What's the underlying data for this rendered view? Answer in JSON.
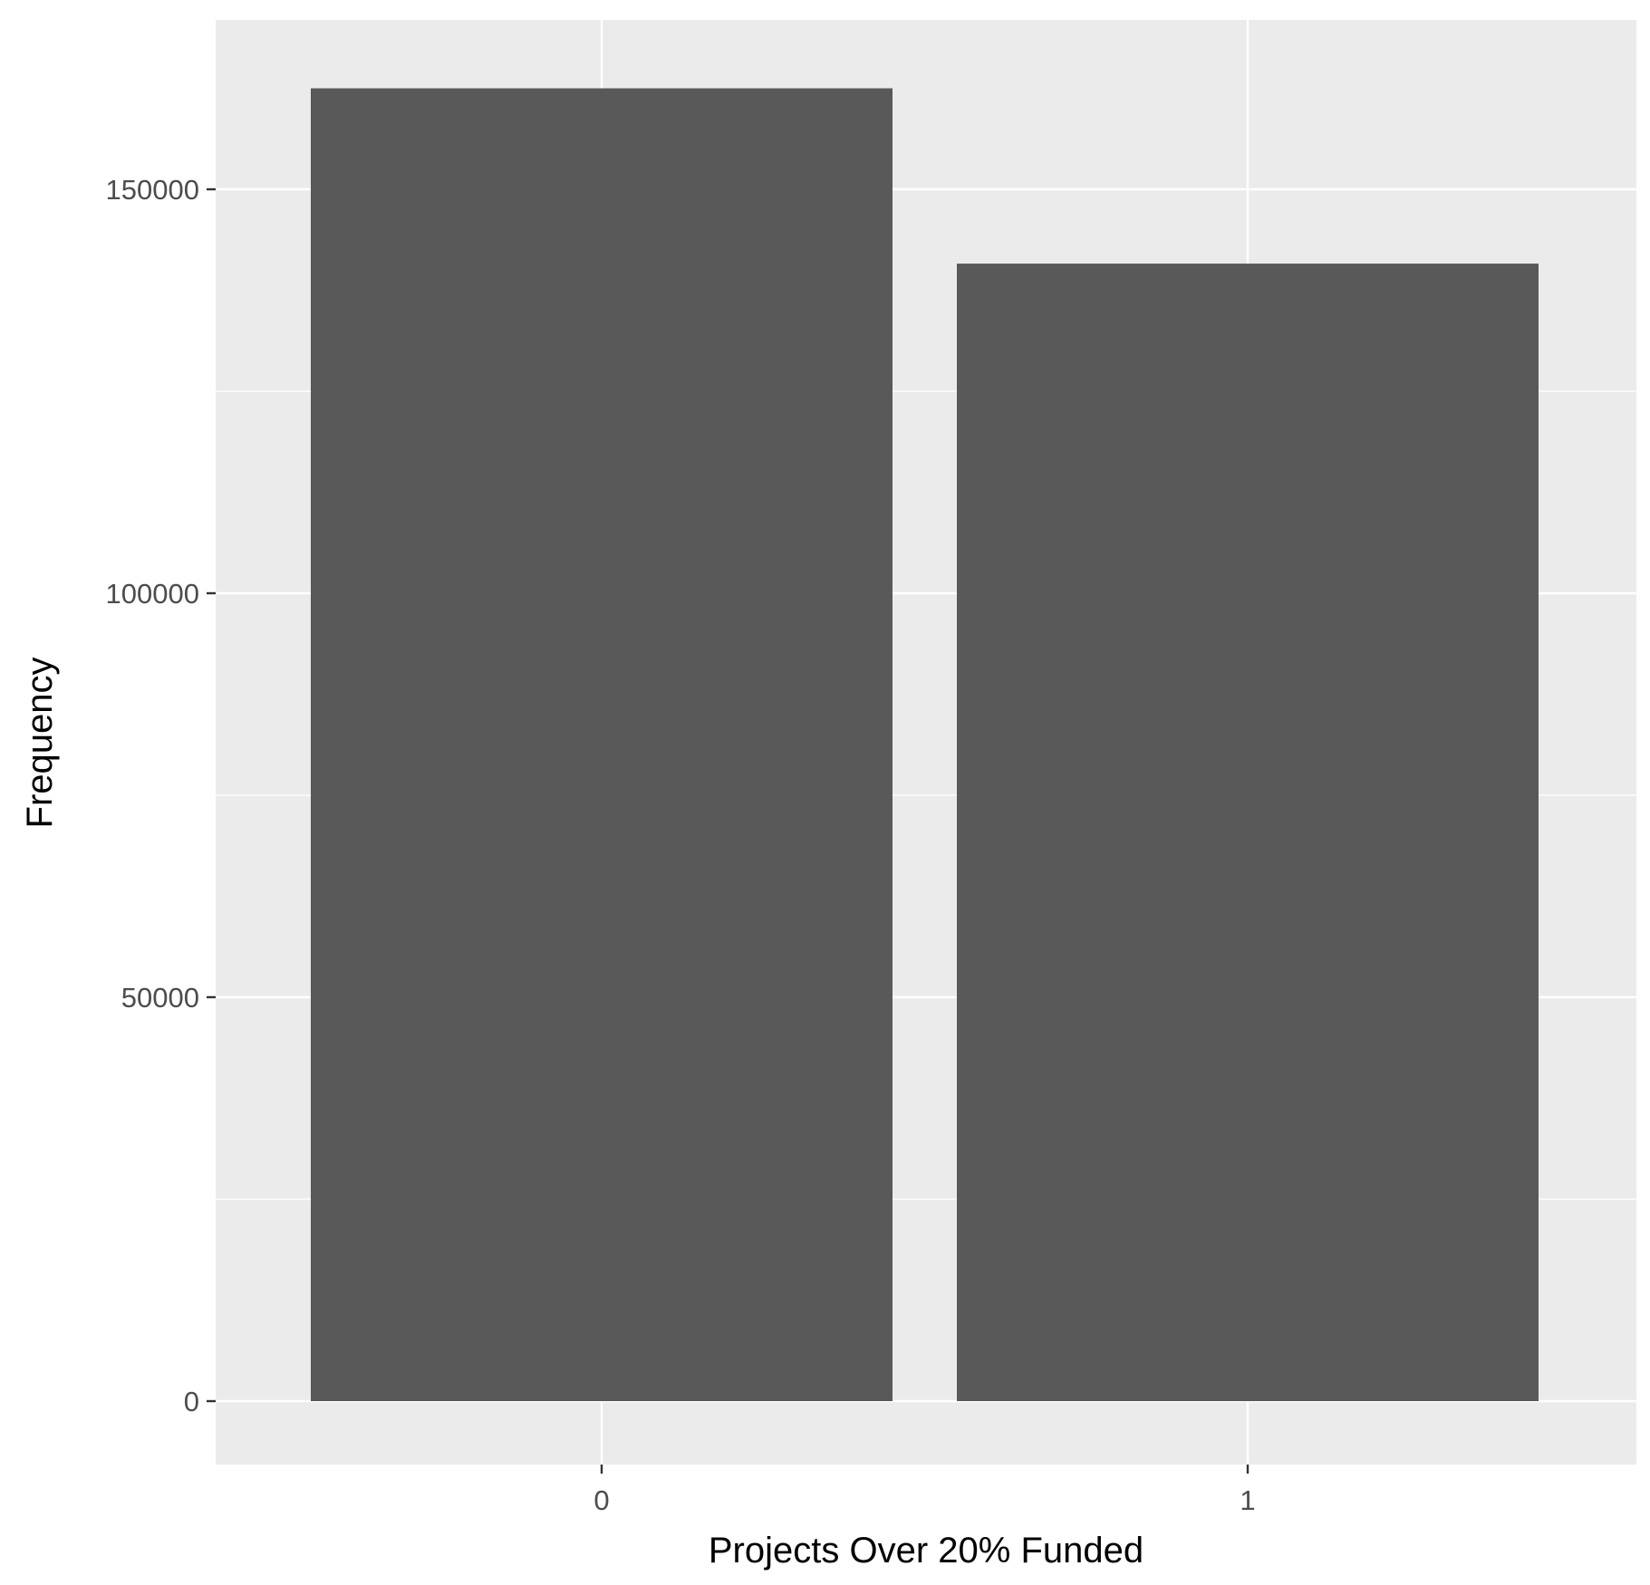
{
  "chart_data": {
    "type": "bar",
    "categories": [
      "0",
      "1"
    ],
    "values": [
      162500,
      140800
    ],
    "title": "",
    "xlabel": "Projects Over 20% Funded",
    "ylabel": "Frequency",
    "ylim": [
      -16000,
      170000
    ],
    "y_ticks": [
      0,
      50000,
      100000,
      150000
    ],
    "y_tick_labels": [
      "0",
      "50000",
      "100000",
      "150000"
    ],
    "grid": true,
    "legend": "none",
    "colors": {
      "bar": "#595959",
      "panel_background": "#ebebeb",
      "grid_major": "#ffffff",
      "tick_text": "#4d4d4d",
      "axis_title": "#000000"
    }
  }
}
